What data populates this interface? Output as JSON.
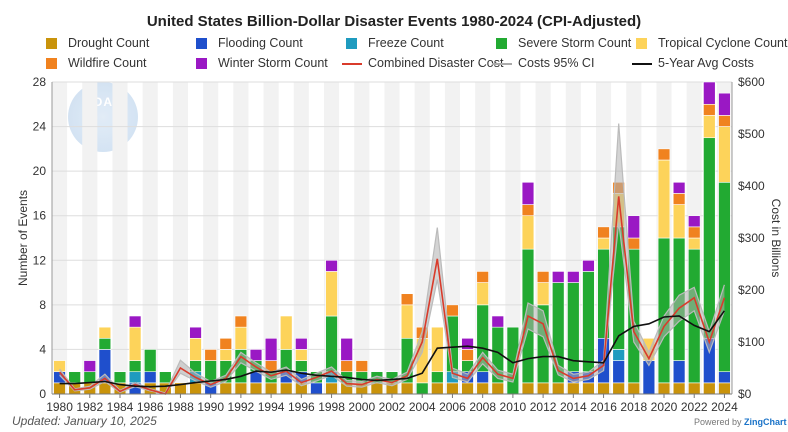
{
  "title": "United States Billion-Dollar Disaster Events 1980-2024 (CPI-Adjusted)",
  "updated": "Updated: January 10, 2025",
  "powered_by": "Powered by",
  "powered_brand": "ZingChart",
  "watermark_text": "NOAA",
  "legend": [
    {
      "label": "Drought Count",
      "color": "#c9930b",
      "kind": "box"
    },
    {
      "label": "Flooding Count",
      "color": "#1f4fcc",
      "kind": "box"
    },
    {
      "label": "Freeze Count",
      "color": "#1f9bbf",
      "kind": "box"
    },
    {
      "label": "Severe Storm Count",
      "color": "#22aa32",
      "kind": "box"
    },
    {
      "label": "Tropical Cyclone Count",
      "color": "#fdd35a",
      "kind": "box"
    },
    {
      "label": "Wildfire Count",
      "color": "#f0821f",
      "kind": "box"
    },
    {
      "label": "Winter Storm Count",
      "color": "#9a18c4",
      "kind": "box"
    },
    {
      "label": "Combined Disaster Cost",
      "color": "#d93b2b",
      "kind": "line"
    },
    {
      "label": "Costs 95% CI",
      "color": "#aaaaaa",
      "kind": "line"
    },
    {
      "label": "5-Year Avg Costs",
      "color": "#111111",
      "kind": "line"
    }
  ],
  "chart_data": {
    "type": "bar",
    "stacked": true,
    "years": [
      1980,
      1981,
      1982,
      1983,
      1984,
      1985,
      1986,
      1987,
      1988,
      1989,
      1990,
      1991,
      1992,
      1993,
      1994,
      1995,
      1996,
      1997,
      1998,
      1999,
      2000,
      2001,
      2002,
      2003,
      2004,
      2005,
      2006,
      2007,
      2008,
      2009,
      2010,
      2011,
      2012,
      2013,
      2014,
      2015,
      2016,
      2017,
      2018,
      2019,
      2020,
      2021,
      2022,
      2023,
      2024
    ],
    "x_tick_labels": [
      "1980",
      "1982",
      "1984",
      "1986",
      "1988",
      "1990",
      "1992",
      "1994",
      "1996",
      "1998",
      "2000",
      "2002",
      "2004",
      "2006",
      "2008",
      "2010",
      "2012",
      "2014",
      "2016",
      "2018",
      "2020",
      "2022",
      "2024"
    ],
    "ylabel": "Number of Events",
    "y2label": "Cost in Billions",
    "ylim": [
      0,
      28
    ],
    "y_ticks": [
      0,
      4,
      8,
      12,
      16,
      20,
      24,
      28
    ],
    "y2lim": [
      0,
      600
    ],
    "y2_ticks": [
      "$0",
      "$100",
      "$200",
      "$300",
      "$400",
      "$500",
      "$600"
    ],
    "grid": true,
    "series": [
      {
        "name": "Drought Count",
        "color": "#c9930b",
        "values": [
          1,
          1,
          1,
          1,
          1,
          0,
          1,
          1,
          1,
          1,
          0,
          1,
          1,
          1,
          1,
          1,
          1,
          0,
          1,
          1,
          1,
          1,
          1,
          1,
          0,
          1,
          1,
          1,
          1,
          1,
          0,
          1,
          1,
          1,
          1,
          1,
          1,
          1,
          1,
          0,
          1,
          1,
          1,
          1,
          1
        ]
      },
      {
        "name": "Flooding Count",
        "color": "#1f4fcc",
        "values": [
          1,
          0,
          0,
          3,
          0,
          1,
          1,
          0,
          0,
          0,
          1,
          0,
          0,
          1,
          0,
          1,
          1,
          1,
          0,
          0,
          0,
          0,
          0,
          0,
          0,
          0,
          0,
          1,
          1,
          0,
          0,
          0,
          0,
          0,
          1,
          1,
          4,
          2,
          0,
          3,
          0,
          2,
          0,
          4,
          1
        ]
      },
      {
        "name": "Freeze Count",
        "color": "#1f9bbf",
        "values": [
          0,
          0,
          0,
          0,
          0,
          1,
          0,
          0,
          0,
          1,
          0,
          0,
          0,
          0,
          0,
          0,
          0,
          0,
          1,
          0,
          0,
          0,
          0,
          0,
          0,
          0,
          1,
          0,
          0,
          0,
          0,
          0,
          0,
          0,
          0,
          0,
          0,
          1,
          0,
          0,
          0,
          0,
          0,
          0,
          0
        ]
      },
      {
        "name": "Severe Storm Count",
        "color": "#22aa32",
        "values": [
          0,
          1,
          1,
          1,
          1,
          1,
          2,
          1,
          0,
          1,
          2,
          2,
          3,
          1,
          1,
          2,
          1,
          1,
          5,
          1,
          1,
          1,
          1,
          4,
          1,
          1,
          5,
          1,
          6,
          5,
          6,
          12,
          7,
          9,
          8,
          9,
          8,
          11,
          12,
          0,
          13,
          11,
          12,
          18,
          17
        ]
      },
      {
        "name": "Tropical Cyclone Count",
        "color": "#fdd35a",
        "values": [
          1,
          0,
          0,
          1,
          0,
          3,
          0,
          0,
          0,
          2,
          0,
          1,
          2,
          0,
          0,
          3,
          1,
          0,
          4,
          0,
          0,
          0,
          0,
          3,
          4,
          4,
          0,
          0,
          2,
          0,
          0,
          3,
          2,
          0,
          0,
          0,
          1,
          3,
          0,
          2,
          7,
          3,
          1,
          2,
          5
        ]
      },
      {
        "name": "Wildfire Count",
        "color": "#f0821f",
        "values": [
          0,
          0,
          0,
          0,
          0,
          0,
          0,
          0,
          0,
          0,
          1,
          1,
          1,
          0,
          1,
          0,
          0,
          0,
          0,
          1,
          1,
          0,
          0,
          1,
          1,
          0,
          1,
          1,
          1,
          0,
          0,
          1,
          1,
          0,
          0,
          0,
          1,
          1,
          1,
          0,
          1,
          1,
          1,
          1,
          1
        ]
      },
      {
        "name": "Winter Storm Count",
        "color": "#9a18c4",
        "values": [
          0,
          0,
          1,
          0,
          0,
          1,
          0,
          0,
          0,
          1,
          0,
          0,
          0,
          1,
          2,
          0,
          1,
          0,
          1,
          2,
          0,
          0,
          0,
          0,
          0,
          0,
          0,
          1,
          0,
          1,
          0,
          2,
          0,
          1,
          1,
          1,
          0,
          0,
          2,
          0,
          0,
          1,
          1,
          2,
          2
        ]
      }
    ],
    "cost_series": [
      {
        "name": "Combined Disaster Cost",
        "color": "#d93b2b",
        "values": [
          42,
          8,
          12,
          30,
          5,
          18,
          8,
          0,
          50,
          32,
          18,
          30,
          72,
          52,
          35,
          44,
          22,
          32,
          44,
          20,
          18,
          28,
          22,
          35,
          100,
          260,
          40,
          30,
          70,
          38,
          30,
          150,
          135,
          45,
          30,
          35,
          55,
          380,
          120,
          68,
          130,
          165,
          185,
          100,
          185
        ]
      },
      {
        "name": "Costs 95% CI Upper",
        "color": "#aaaaaa",
        "values": [
          48,
          10,
          15,
          38,
          7,
          22,
          10,
          2,
          65,
          40,
          24,
          36,
          80,
          60,
          42,
          52,
          28,
          40,
          52,
          26,
          24,
          34,
          28,
          42,
          120,
          320,
          50,
          38,
          80,
          46,
          38,
          175,
          160,
          55,
          38,
          42,
          65,
          520,
          140,
          80,
          150,
          190,
          205,
          120,
          210
        ]
      },
      {
        "name": "Costs 95% CI Lower",
        "color": "#aaaaaa",
        "values": [
          36,
          6,
          9,
          24,
          3,
          14,
          6,
          0,
          40,
          25,
          13,
          24,
          60,
          44,
          28,
          36,
          16,
          25,
          36,
          15,
          13,
          22,
          16,
          28,
          80,
          220,
          32,
          23,
          58,
          30,
          23,
          125,
          110,
          37,
          23,
          28,
          45,
          330,
          100,
          55,
          110,
          140,
          160,
          80,
          160
        ]
      },
      {
        "name": "5-Year Avg Costs",
        "color": "#111111",
        "values": [
          20,
          20,
          22,
          24,
          18,
          15,
          14,
          15,
          18,
          22,
          25,
          28,
          34,
          44,
          42,
          46,
          40,
          36,
          34,
          32,
          28,
          26,
          28,
          30,
          40,
          88,
          90,
          92,
          88,
          80,
          60,
          68,
          72,
          72,
          64,
          62,
          60,
          112,
          130,
          135,
          148,
          150,
          132,
          120,
          160
        ]
      }
    ]
  }
}
